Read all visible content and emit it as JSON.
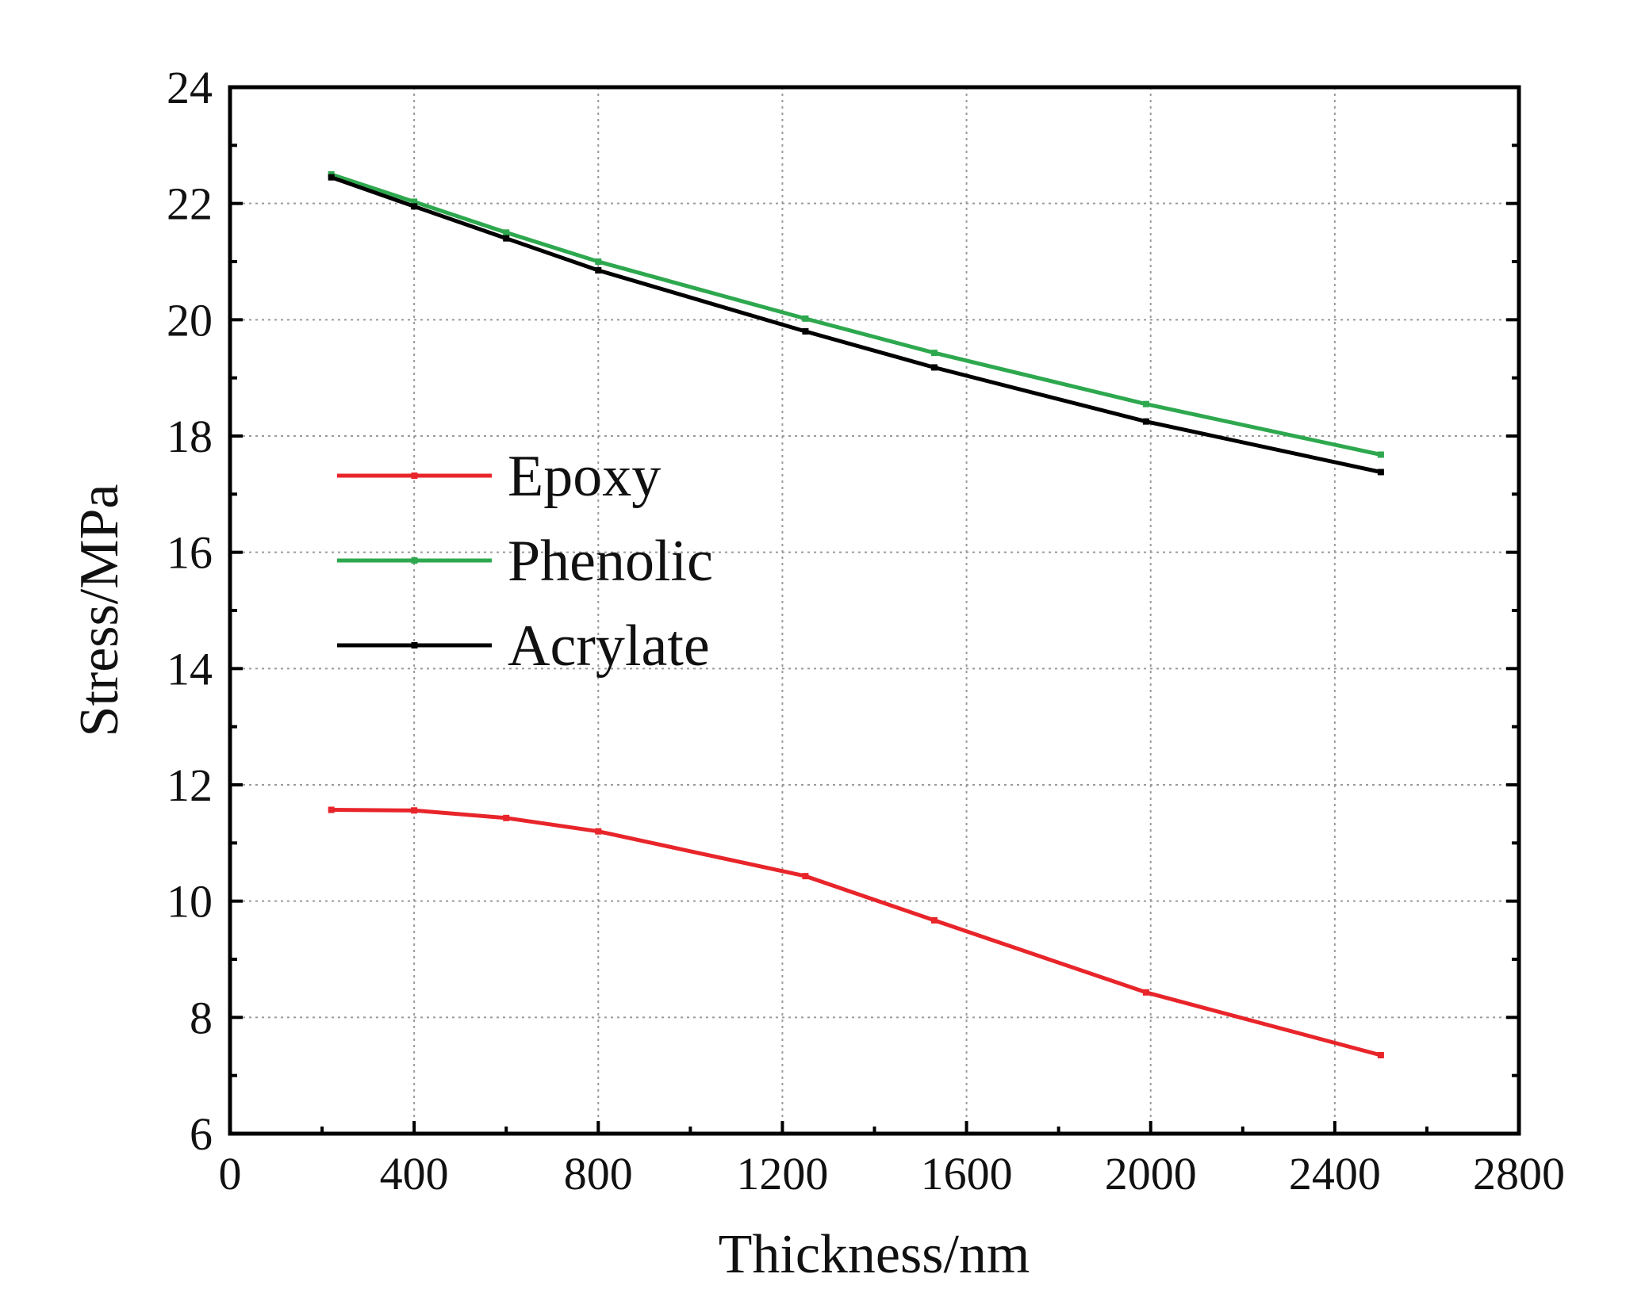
{
  "chart_data": {
    "type": "line",
    "title": "",
    "xlabel": "Thickness/nm",
    "ylabel": "Stress/MPa",
    "xlim": [
      0,
      2800
    ],
    "ylim": [
      6,
      24
    ],
    "xticks": [
      0,
      400,
      800,
      1200,
      1600,
      2000,
      2400,
      2800
    ],
    "yticks": [
      6,
      8,
      10,
      12,
      14,
      16,
      18,
      20,
      22,
      24
    ],
    "grid": true,
    "legend_position": "center-left",
    "x": [
      220,
      400,
      600,
      800,
      1250,
      1530,
      1990,
      2500
    ],
    "series": [
      {
        "name": "Epoxy",
        "color": "#e8252a",
        "values": [
          11.57,
          11.56,
          11.43,
          11.2,
          10.43,
          9.67,
          8.43,
          7.35
        ]
      },
      {
        "name": "Phenolic",
        "color": "#2ea84e",
        "values": [
          22.5,
          22.03,
          21.5,
          21.0,
          20.02,
          19.43,
          18.55,
          17.68
        ]
      },
      {
        "name": "Acrylate",
        "color": "#000000",
        "values": [
          22.45,
          21.95,
          21.4,
          20.85,
          19.8,
          19.18,
          18.25,
          17.38
        ]
      }
    ]
  }
}
